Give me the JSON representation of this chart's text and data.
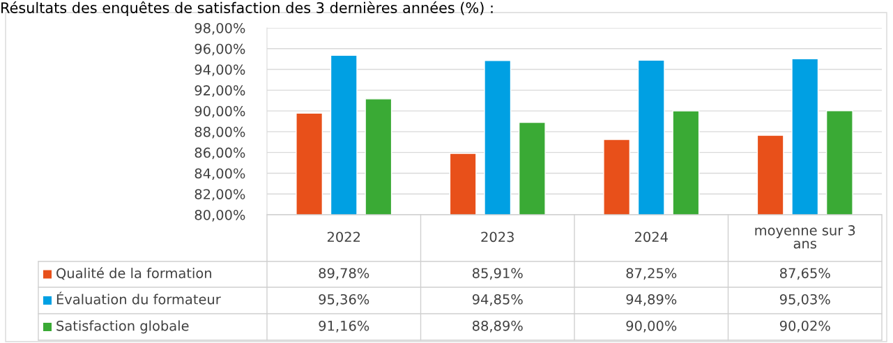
{
  "chart_data": {
    "type": "bar",
    "title": "Résultats des enquêtes de satisfaction des 3 dernières années (%) :",
    "categories": [
      "2022",
      "2023",
      "2024",
      "moyenne sur 3 ans"
    ],
    "series": [
      {
        "name": "Qualité de la formation",
        "color": "#e8501a",
        "values": [
          89.78,
          85.91,
          87.25,
          87.65
        ],
        "value_labels": [
          "89,78%",
          "85,91%",
          "87,25%",
          "87,65%"
        ]
      },
      {
        "name": "Évaluation du formateur",
        "color": "#00a0e3",
        "values": [
          95.36,
          94.85,
          94.89,
          95.03
        ],
        "value_labels": [
          "95,36%",
          "94,85%",
          "94,89%",
          "95,03%"
        ]
      },
      {
        "name": "Satisfaction globale",
        "color": "#3aaa35",
        "values": [
          91.16,
          88.89,
          90.0,
          90.02
        ],
        "value_labels": [
          "91,16%",
          "88,89%",
          "90,00%",
          "90,02%"
        ]
      }
    ],
    "ylim": [
      80,
      98
    ],
    "yticks": [
      {
        "value": 80,
        "label": "80,00%"
      },
      {
        "value": 82,
        "label": "82,00%"
      },
      {
        "value": 84,
        "label": "84,00%"
      },
      {
        "value": 86,
        "label": "86,00%"
      },
      {
        "value": 88,
        "label": "88,00%"
      },
      {
        "value": 90,
        "label": "90,00%"
      },
      {
        "value": 92,
        "label": "92,00%"
      },
      {
        "value": 94,
        "label": "94,00%"
      },
      {
        "value": 96,
        "label": "96,00%"
      },
      {
        "value": 98,
        "label": "98,00%"
      }
    ],
    "grid": "y",
    "legend": "bottom"
  }
}
